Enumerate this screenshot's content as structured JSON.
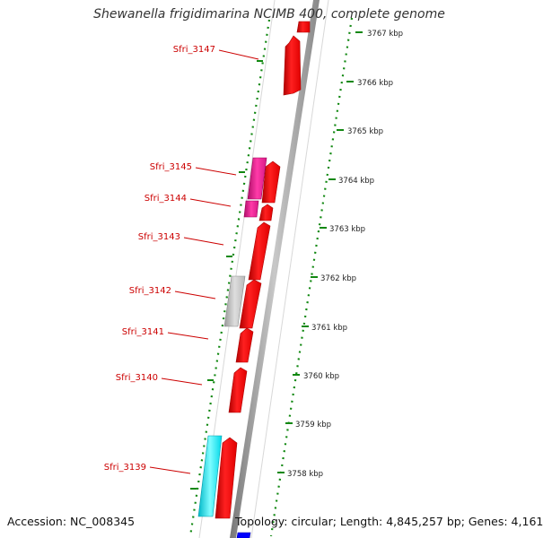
{
  "title": "Shewanella frigidimarina NCIMB 400, complete genome",
  "accession_label": "Accession: NC_008345",
  "topology_label": "Topology: circular; Length: 4,845,257 bp; Genes: 4,161",
  "kbp_ticks": [
    "3767 kbp",
    "3766 kbp",
    "3765 kbp",
    "3764 kbp",
    "3763 kbp",
    "3762 kbp",
    "3761 kbp",
    "3760 kbp",
    "3759 kbp",
    "3758 kbp"
  ],
  "gene_labels": [
    "Sfri_3147",
    "Sfri_3145",
    "Sfri_3144",
    "Sfri_3143",
    "Sfri_3142",
    "Sfri_3141",
    "Sfri_3140",
    "Sfri_3139"
  ],
  "colors": {
    "forward_gene": "#ff0000",
    "reverse_magenta": "#ee1188",
    "reverse_gray": "#c0c0c0",
    "reverse_cyan": "#00eeee",
    "blue_gene": "#0000ff",
    "label_red": "#cc0000",
    "tick_green": "#007700",
    "backbone_gray": "#999999"
  }
}
